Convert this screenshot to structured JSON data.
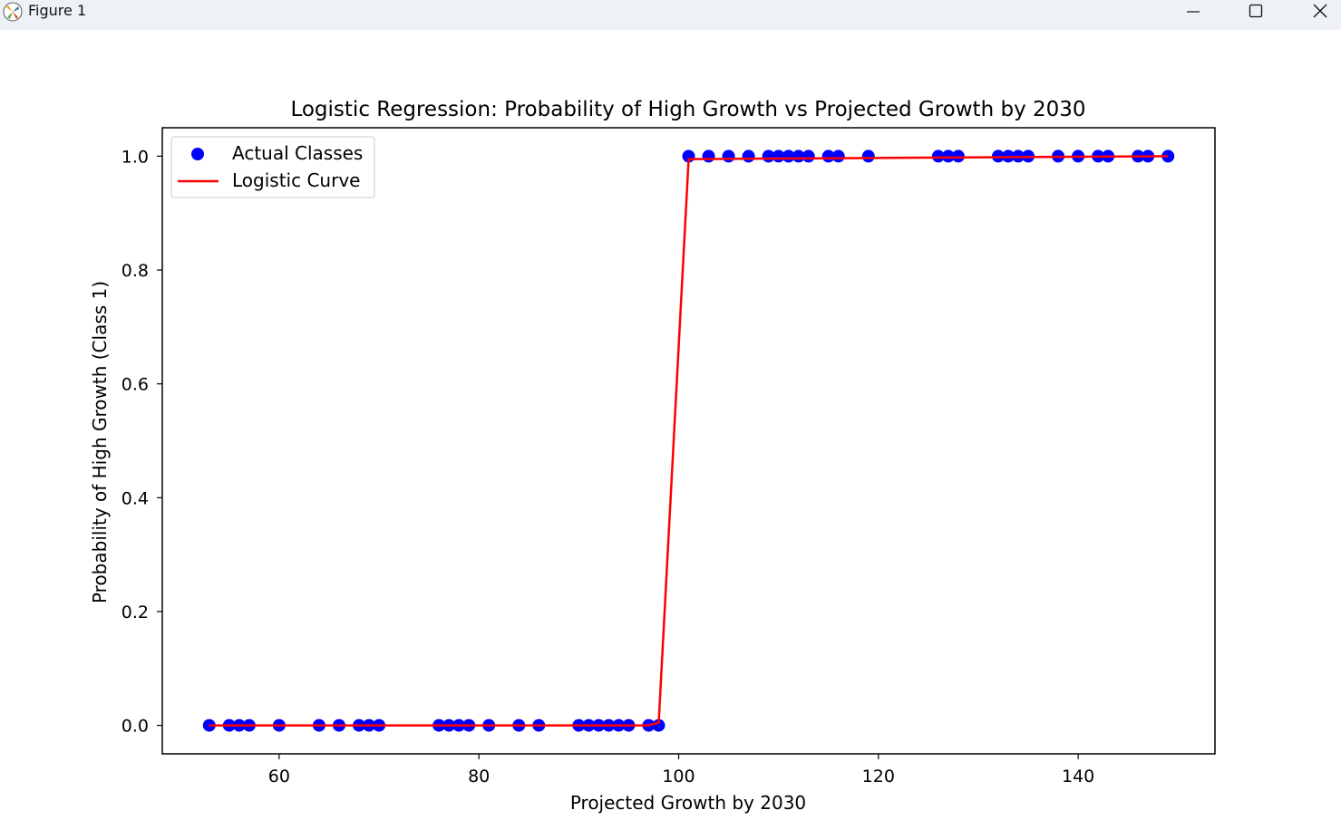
{
  "window": {
    "title": "Figure 1",
    "minimize_icon": "minimize-icon",
    "maximize_icon": "maximize-icon",
    "close_icon": "close-icon"
  },
  "chart_data": {
    "type": "scatter",
    "title": "Logistic Regression: Probability of High Growth vs Projected Growth by 2030",
    "xlabel": "Projected Growth by 2030",
    "ylabel": "Probability of High Growth (Class 1)",
    "xlim": [
      48.3,
      153.7
    ],
    "ylim": [
      -0.05,
      1.05
    ],
    "xticks": [
      60,
      80,
      100,
      120,
      140
    ],
    "yticks": [
      0.0,
      0.2,
      0.4,
      0.6,
      0.8,
      1.0
    ],
    "xtick_labels": [
      "60",
      "80",
      "100",
      "120",
      "140"
    ],
    "ytick_labels": [
      "0.0",
      "0.2",
      "0.4",
      "0.6",
      "0.8",
      "1.0"
    ],
    "grid": false,
    "legend": {
      "position": "upper-left",
      "entries": [
        "Actual Classes",
        "Logistic Curve"
      ]
    },
    "series": [
      {
        "name": "Actual Classes",
        "kind": "scatter",
        "color": "#0000ff",
        "x": [
          53,
          55,
          56,
          57,
          60,
          64,
          66,
          68,
          69,
          70,
          76,
          77,
          78,
          79,
          81,
          84,
          86,
          90,
          91,
          92,
          93,
          94,
          95,
          97,
          98,
          101,
          103,
          105,
          107,
          109,
          110,
          111,
          112,
          113,
          115,
          116,
          119,
          126,
          127,
          128,
          132,
          133,
          134,
          135,
          138,
          140,
          142,
          143,
          146,
          147,
          149
        ],
        "y": [
          0,
          0,
          0,
          0,
          0,
          0,
          0,
          0,
          0,
          0,
          0,
          0,
          0,
          0,
          0,
          0,
          0,
          0,
          0,
          0,
          0,
          0,
          0,
          0,
          0,
          1,
          1,
          1,
          1,
          1,
          1,
          1,
          1,
          1,
          1,
          1,
          1,
          1,
          1,
          1,
          1,
          1,
          1,
          1,
          1,
          1,
          1,
          1,
          1,
          1,
          1
        ]
      },
      {
        "name": "Logistic Curve",
        "kind": "line",
        "color": "#ff0000",
        "x": [
          53,
          97,
          98,
          101,
          149
        ],
        "y": [
          0,
          0.0,
          0.005,
          0.995,
          1.0
        ]
      }
    ]
  }
}
